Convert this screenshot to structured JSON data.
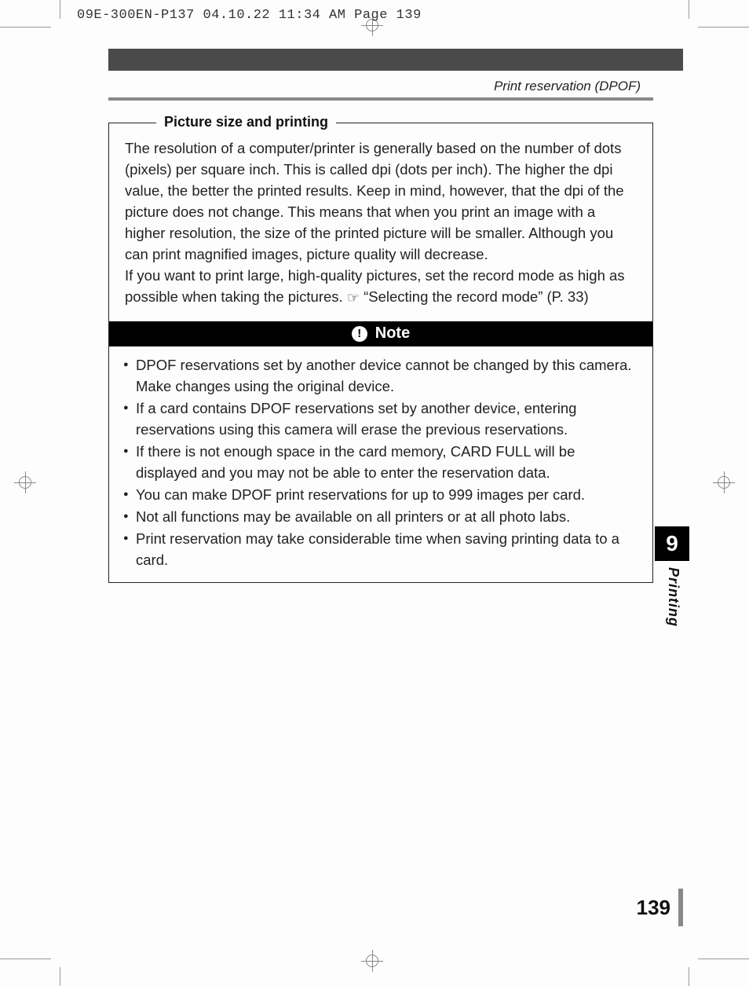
{
  "slug": "09E-300EN-P137  04.10.22 11:34 AM  Page 139",
  "header": {
    "running_head": "Print reservation (DPOF)"
  },
  "fieldset": {
    "legend": "Picture size and printing",
    "para1": "The resolution of a computer/printer is generally based on the number of dots (pixels) per square inch. This is called dpi (dots per inch). The higher the dpi value, the better the printed results. Keep in mind, however, that the dpi of the picture does not change. This means that when you print an image with a higher resolution, the size of the printed picture will be smaller. Although you can print magnified images, picture quality will decrease.",
    "para2_pre": "If you want to print large, high-quality pictures, set the record mode as high as possible when taking the pictures. ",
    "para2_post": " “Selecting the record mode” (P. 33)"
  },
  "note": {
    "title": "Note",
    "items": [
      "DPOF reservations set by another device cannot be changed by this camera. Make changes using the original device.",
      "If a card contains DPOF reservations set by another device, entering reservations using this camera will erase the previous reservations.",
      "If there is not enough space in the card memory, CARD FULL will be displayed and you may not be able to enter the reservation data.",
      "You can make DPOF print reservations for up to 999 images per card.",
      "Not all functions may be available on all printers or at all photo labs.",
      "Print reservation may take considerable time when saving printing data to a card."
    ]
  },
  "chapter": {
    "number": "9",
    "label": "Printing"
  },
  "page_number": "139"
}
